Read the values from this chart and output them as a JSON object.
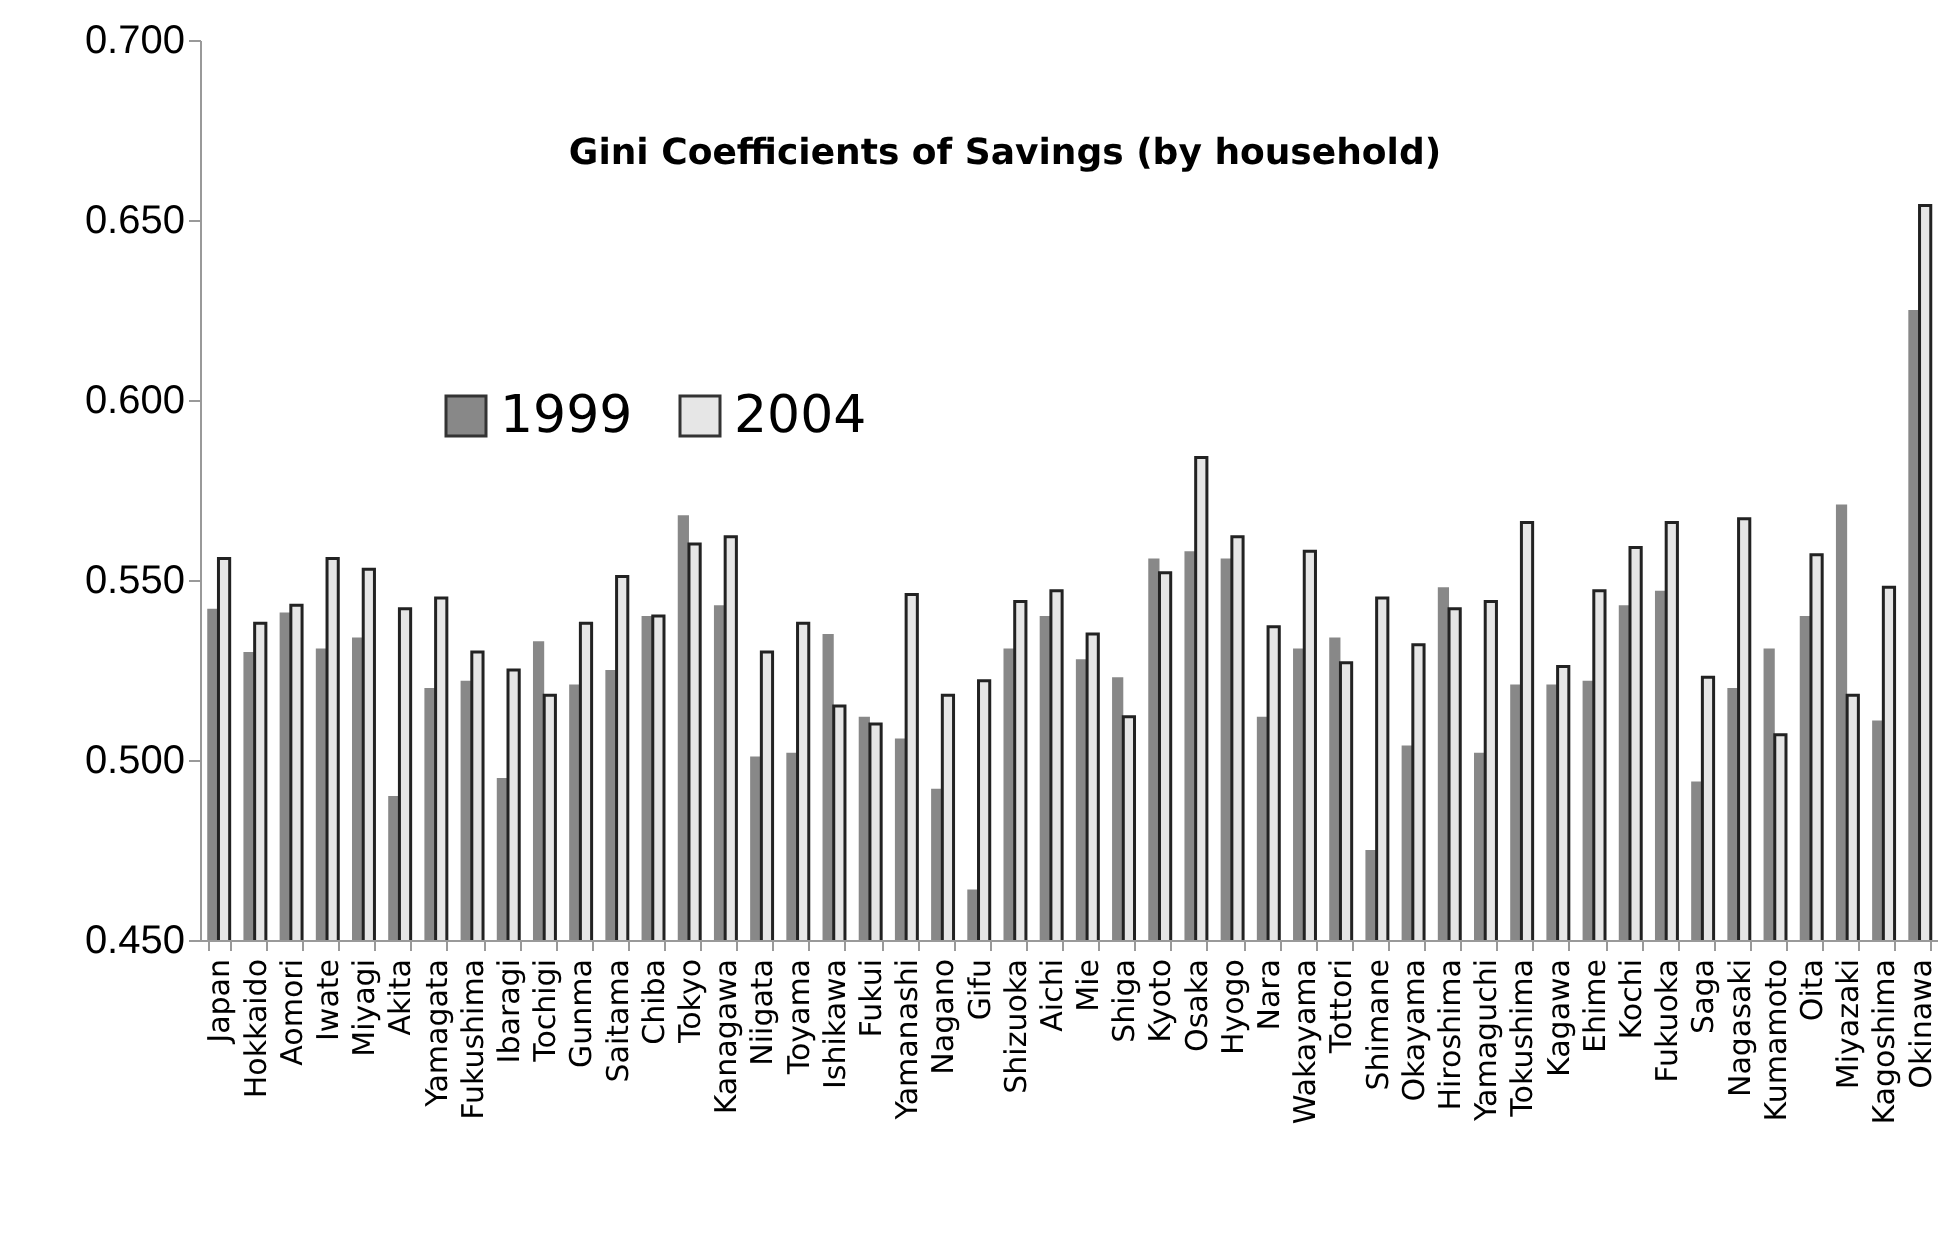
{
  "chart_data": {
    "type": "bar",
    "title": "Gini Coefficients of Savings  (by household)",
    "categories": [
      "Japan",
      "Hokkaido",
      "Aomori",
      "Iwate",
      "Miyagi",
      "Akita",
      "Yamagata",
      "Fukushima",
      "Ibaragi",
      "Tochigi",
      "Gunma",
      "Saitama",
      "Chiba",
      "Tokyo",
      "Kanagawa",
      "Niigata",
      "Toyama",
      "Ishikawa",
      "Fukui",
      "Yamanashi",
      "Nagano",
      "Gifu",
      "Shizuoka",
      "Aichi",
      "Mie",
      "Shiga",
      "Kyoto",
      "Osaka",
      "Hyogo",
      "Nara",
      "Wakayama",
      "Tottori",
      "Shimane",
      "Okayama",
      "Hiroshima",
      "Yamaguchi",
      "Tokushima",
      "Kagawa",
      "Ehime",
      "Kochi",
      "Fukuoka",
      "Saga",
      "Nagasaki",
      "Kumamoto",
      "Oita",
      "Miyazaki",
      "Kagoshima",
      "Okinawa"
    ],
    "series": [
      {
        "name": "1999",
        "color": "#888888",
        "values": [
          0.542,
          0.53,
          0.541,
          0.531,
          0.534,
          0.49,
          0.52,
          0.522,
          0.495,
          0.533,
          0.521,
          0.525,
          0.54,
          0.568,
          0.543,
          0.501,
          0.502,
          0.535,
          0.512,
          0.506,
          0.492,
          0.464,
          0.531,
          0.54,
          0.528,
          0.523,
          0.556,
          0.558,
          0.556,
          0.512,
          0.531,
          0.534,
          0.475,
          0.504,
          0.548,
          0.502,
          0.521,
          0.521,
          0.522,
          0.543,
          0.547,
          0.494,
          0.52,
          0.531,
          0.54,
          0.571,
          0.511,
          0.625
        ]
      },
      {
        "name": "2004",
        "color": "#e6e6e6",
        "values": [
          0.556,
          0.538,
          0.543,
          0.556,
          0.553,
          0.542,
          0.545,
          0.53,
          0.525,
          0.518,
          0.538,
          0.551,
          0.54,
          0.56,
          0.562,
          0.53,
          0.538,
          0.515,
          0.51,
          0.546,
          0.518,
          0.522,
          0.544,
          0.547,
          0.535,
          0.512,
          0.552,
          0.584,
          0.562,
          0.537,
          0.558,
          0.527,
          0.545,
          0.532,
          0.542,
          0.544,
          0.566,
          0.526,
          0.547,
          0.559,
          0.566,
          0.523,
          0.567,
          0.507,
          0.557,
          0.518,
          0.548,
          0.654
        ]
      }
    ],
    "ylim": [
      0.45,
      0.7
    ],
    "yticks": [
      {
        "value": 0.45,
        "label": "0.450"
      },
      {
        "value": 0.5,
        "label": "0.500"
      },
      {
        "value": 0.55,
        "label": "0.550"
      },
      {
        "value": 0.6,
        "label": "0.600"
      },
      {
        "value": 0.65,
        "label": "0.650"
      },
      {
        "value": 0.7,
        "label": "0.700"
      }
    ],
    "legend": "top left",
    "grid": false
  }
}
